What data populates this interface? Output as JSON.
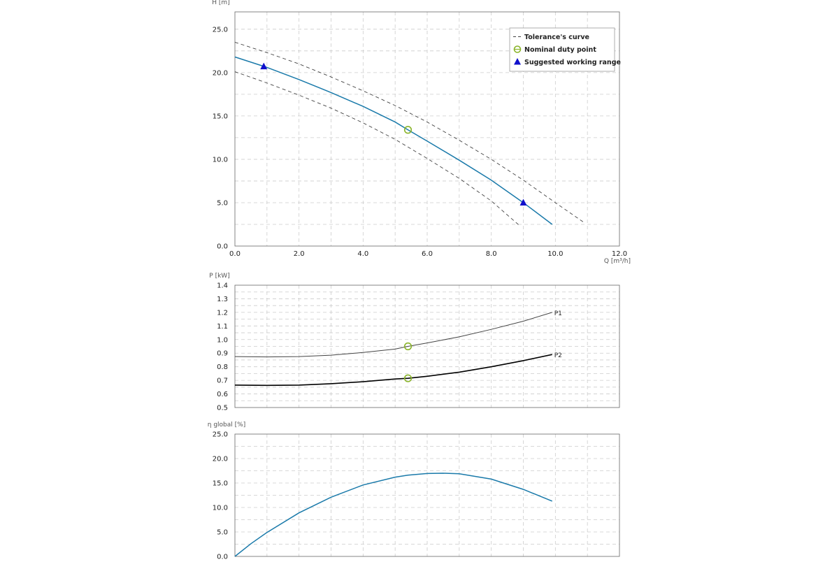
{
  "colors": {
    "curve": "#1a7aaa",
    "tolerance": "#444444",
    "duty_point": "#8ab42a",
    "working_range": "#1010cc",
    "p1": "#444444",
    "p2": "#000000",
    "efficiency": "#1a7aaa",
    "grid": "#cccccc"
  },
  "chart_data": [
    {
      "type": "line",
      "id": "head",
      "ylabel": "H [m]",
      "xlabel": "Q [m³/h]",
      "xlim": [
        0,
        12
      ],
      "ylim": [
        0,
        27
      ],
      "x_ticks": [
        "0.0",
        "2.0",
        "4.0",
        "6.0",
        "8.0",
        "10.0",
        "12.0"
      ],
      "y_ticks": [
        "0.0",
        "5.0",
        "10.0",
        "15.0",
        "20.0",
        "25.0"
      ],
      "grid": true,
      "legend_position": "top-right",
      "legend": [
        {
          "marker": "dashed",
          "label": "Tolerance's curve"
        },
        {
          "marker": "circle",
          "label": "Nominal duty point"
        },
        {
          "marker": "triangle",
          "label": "Suggested working range"
        }
      ],
      "series": [
        {
          "key": "curve",
          "style": "solid",
          "x": [
            0,
            1,
            2,
            3,
            4,
            5,
            5.4,
            6,
            7,
            8,
            9,
            9.9
          ],
          "y": [
            21.8,
            20.6,
            19.2,
            17.7,
            16.1,
            14.3,
            13.4,
            12.1,
            9.9,
            7.6,
            5.0,
            2.5
          ]
        },
        {
          "key": "tolerance_upper",
          "style": "dashed",
          "x": [
            0,
            1,
            2,
            3,
            4,
            5,
            6,
            7,
            8,
            9,
            10,
            10.9
          ],
          "y": [
            23.5,
            22.3,
            21.0,
            19.5,
            17.9,
            16.2,
            14.3,
            12.2,
            10.0,
            7.6,
            5.0,
            2.7
          ]
        },
        {
          "key": "tolerance_lower",
          "style": "dashed",
          "x": [
            0,
            1,
            2,
            3,
            4,
            5,
            6,
            7,
            8,
            8.9
          ],
          "y": [
            20.1,
            18.8,
            17.4,
            15.9,
            14.2,
            12.3,
            10.1,
            7.8,
            5.2,
            2.3
          ]
        }
      ],
      "duty_point": {
        "x": 5.4,
        "y": 13.4
      },
      "working_range": [
        {
          "x": 0.9,
          "y": 20.7
        },
        {
          "x": 9.0,
          "y": 5.0
        }
      ]
    },
    {
      "type": "line",
      "id": "power",
      "ylabel": "P [kW]",
      "xlim": [
        0,
        12
      ],
      "ylim": [
        0.5,
        1.4
      ],
      "y_ticks": [
        "0.5",
        "0.6",
        "0.7",
        "0.8",
        "0.9",
        "1.0",
        "1.1",
        "1.2",
        "1.3",
        "1.4"
      ],
      "grid": true,
      "series": [
        {
          "key": "p1",
          "name": "P1",
          "x": [
            0,
            1,
            2,
            3,
            4,
            5,
            5.4,
            6,
            7,
            8,
            9,
            9.9
          ],
          "y": [
            0.875,
            0.872,
            0.875,
            0.885,
            0.905,
            0.93,
            0.95,
            0.975,
            1.02,
            1.075,
            1.135,
            1.2
          ]
        },
        {
          "key": "p2",
          "name": "P2",
          "x": [
            0,
            1,
            2,
            3,
            4,
            5,
            5.4,
            6,
            7,
            8,
            9,
            9.9
          ],
          "y": [
            0.665,
            0.663,
            0.665,
            0.675,
            0.69,
            0.71,
            0.715,
            0.73,
            0.76,
            0.8,
            0.845,
            0.89
          ]
        }
      ],
      "duty_points": [
        {
          "x": 5.4,
          "y": 0.95
        },
        {
          "x": 5.4,
          "y": 0.715
        }
      ]
    },
    {
      "type": "line",
      "id": "efficiency",
      "ylabel": "η global [%]",
      "xlim": [
        0,
        12
      ],
      "ylim": [
        0,
        25
      ],
      "y_ticks": [
        "0.0",
        "5.0",
        "10.0",
        "15.0",
        "20.0",
        "25.0"
      ],
      "grid": true,
      "series": [
        {
          "key": "eta",
          "x": [
            0,
            0.5,
            1,
            2,
            3,
            4,
            5,
            5.4,
            6,
            6.5,
            7,
            8,
            9,
            9.9
          ],
          "y": [
            0,
            2.6,
            4.9,
            8.9,
            12.1,
            14.6,
            16.2,
            16.6,
            16.95,
            17.0,
            16.9,
            15.8,
            13.7,
            11.3
          ]
        }
      ]
    }
  ]
}
